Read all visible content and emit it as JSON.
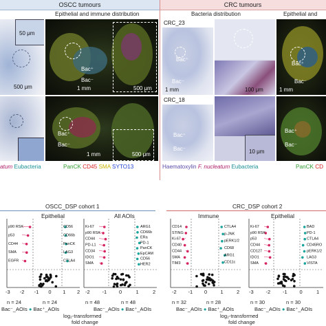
{
  "top": {
    "oscc_header": "OSCC tumours",
    "crc_header": "CRC tumours",
    "oscc_sub": "Epithelial and immune distribution",
    "crc_sub_a": "Bacteria distribution",
    "crc_sub_b": "Epithelial and"
  },
  "labels": {
    "bac_plus": "Bac⁺",
    "bac_minus": "Bac⁻",
    "crc23": "CRC_23",
    "crc18": "CRC_18",
    "scale_50um": "50 μm",
    "scale_500um": "500 μm",
    "scale_1mm": "1 mm",
    "scale_100um": "100 μm",
    "scale_10um": "10 μm"
  },
  "legend_left": {
    "part1": "atum",
    "part2": "Eubacteria",
    "panck": "PanCK",
    "cd45": "CD45",
    "sma": "SMA",
    "syto": "SYTO13"
  },
  "legend_right": {
    "haem": "Haematoxylin",
    "fnuc": "F. nucleatum",
    "eub": "Eubacteria",
    "panck": "PanCK",
    "cd": "CD"
  },
  "bottom": {
    "cohort1": "OSCC_DSP cohort 1",
    "cohort2": "CRC_DSP cohort 2",
    "plots": [
      {
        "title": "Epithelial",
        "n_left": "n = 24",
        "n_right": "n = 24"
      },
      {
        "title": "All AOIs",
        "n_left": "n = 48",
        "n_right": "n = 48"
      },
      {
        "title": "Immune",
        "n_left": "n = 32",
        "n_right": "n = 28"
      },
      {
        "title": "Epithelial",
        "n_left": "n = 30",
        "n_right": "n = 30"
      }
    ],
    "legend_bm": "Bac⁻_AOIs",
    "legend_bp": "Bac⁺_AOIs",
    "xlabel_1": "log₂-transformed",
    "xlabel_2": "fold change",
    "ticks_plot1": [
      "-3",
      "-2",
      "-1",
      "0",
      "1",
      "2"
    ],
    "ticks_plot2": [
      "-2",
      "-1",
      "0",
      "1",
      "2"
    ],
    "ticks_plot3": [
      "-2",
      "-1",
      "0",
      "1",
      "2"
    ],
    "ticks_plot4": [
      "-3",
      "-2",
      "-1",
      "0",
      "1"
    ],
    "genes_p1_left": [
      "p90 RSK",
      "p53",
      "CD44",
      "SMA",
      "EGFR"
    ],
    "genes_p1_right": [
      "CD56",
      "CD66b",
      "PanCK",
      "LAG3",
      "CTLA4"
    ],
    "genes_p2_left": [
      "Ki-67",
      "p90 RSK",
      "CD44",
      "PD-L1",
      "CD34",
      "IDO1",
      "SMA"
    ],
    "genes_p2_right": [
      "ARG1",
      "CD66b",
      "ERa",
      "PD-1",
      "PanCK",
      "EpCAM",
      "CD56",
      "HER2"
    ],
    "genes_p3_left": [
      "CD14",
      "STING",
      "Ki-67",
      "CD40",
      "CD44",
      "SMA",
      "TIM3"
    ],
    "genes_p3_right": [
      "CTLA4",
      "p-JNK",
      "pERK1/2",
      "CD68",
      "ARG1",
      "CD11c"
    ],
    "genes_p4_left": [
      "Ki-67",
      "p90 RSK",
      "p53",
      "CD44",
      "CD127",
      "IDO1",
      "SMA"
    ],
    "genes_p4_right": [
      "BAD",
      "PD-1",
      "CTLA4",
      "CD45RO",
      "pERK1/2",
      "LAG3",
      "VISTA"
    ]
  }
}
